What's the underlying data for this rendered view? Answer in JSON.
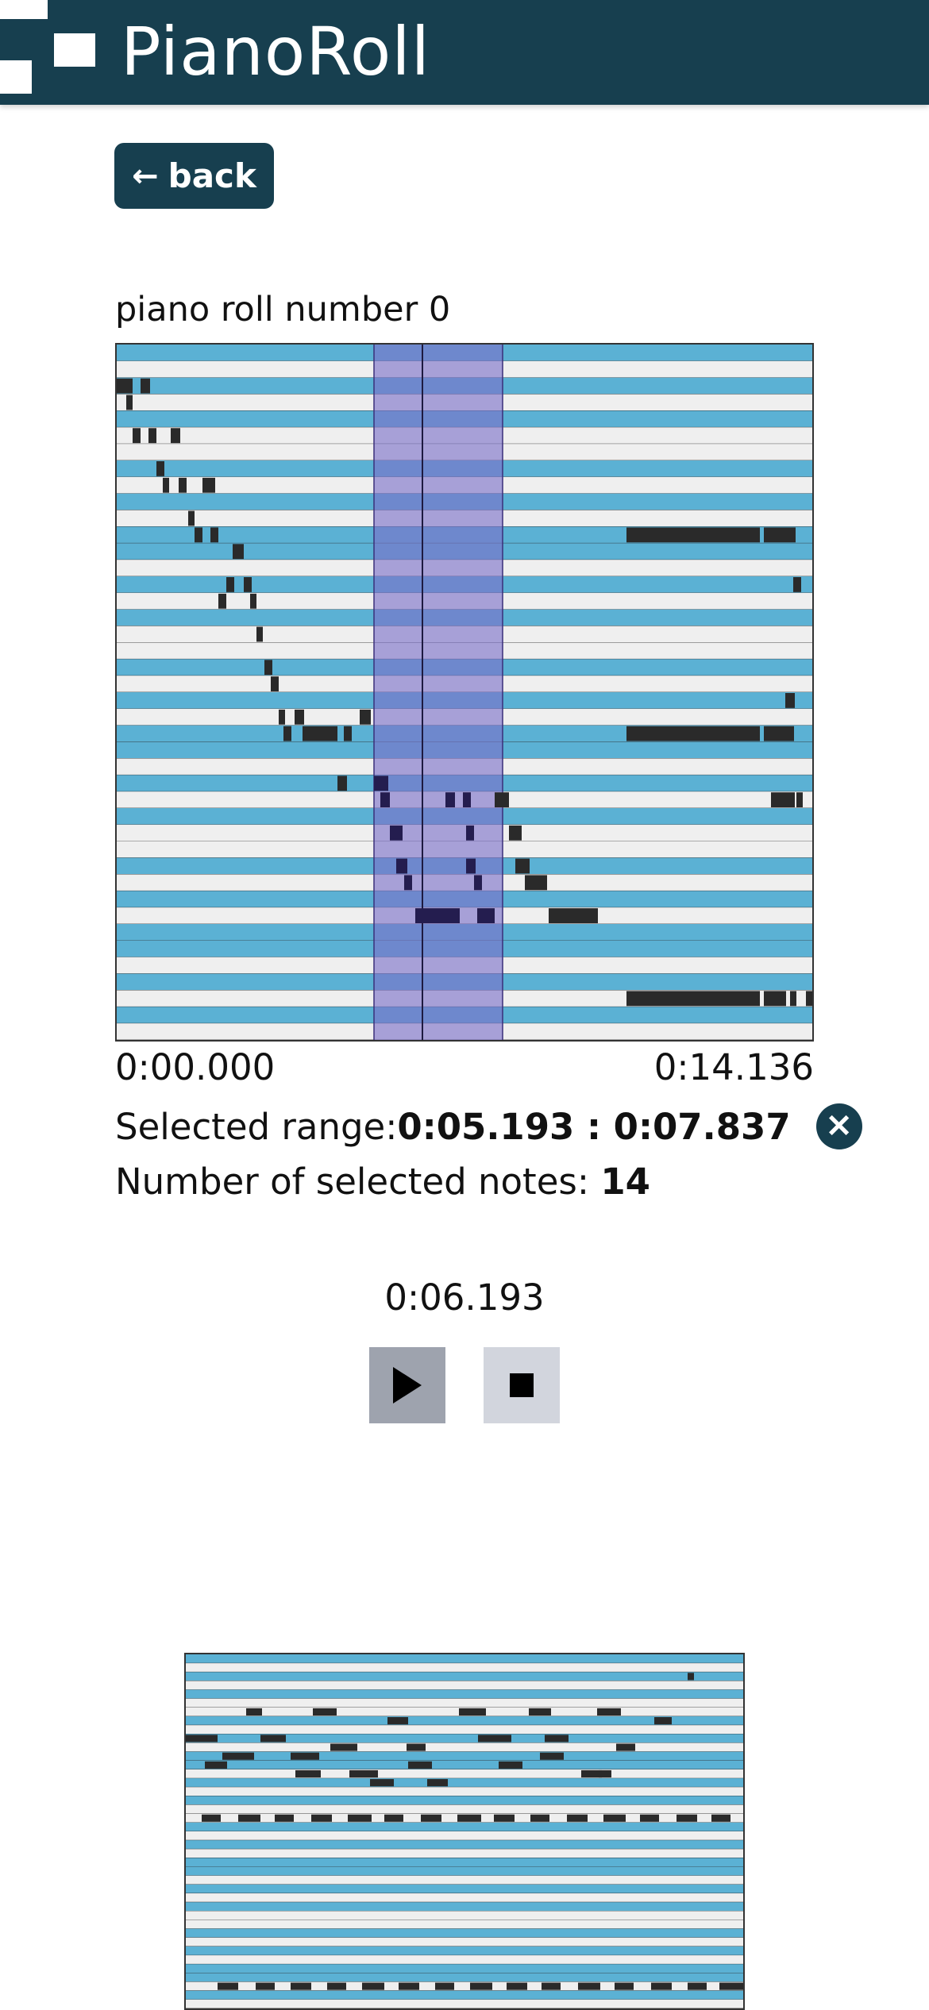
{
  "header": {
    "title": "PianoRoll"
  },
  "back_button": {
    "label": "back"
  },
  "piano_roll": {
    "label": "piano roll number 0",
    "start_time": "0:00.000",
    "end_time": "0:14.136",
    "selected_range_label": "Selected range: ",
    "selected_range_value": "0:05.193 : 0:07.837",
    "selected_notes_label": "Number of selected notes: ",
    "selected_notes_count": "14"
  },
  "player": {
    "current_time": "0:06.193"
  },
  "colors": {
    "header_bg": "#173f4f",
    "black_key_row": "#5bb1d4",
    "white_key_row": "#efefef",
    "note": "#2a2a2a",
    "selection": "#7b6fc8",
    "selected_note": "#241d4f"
  }
}
